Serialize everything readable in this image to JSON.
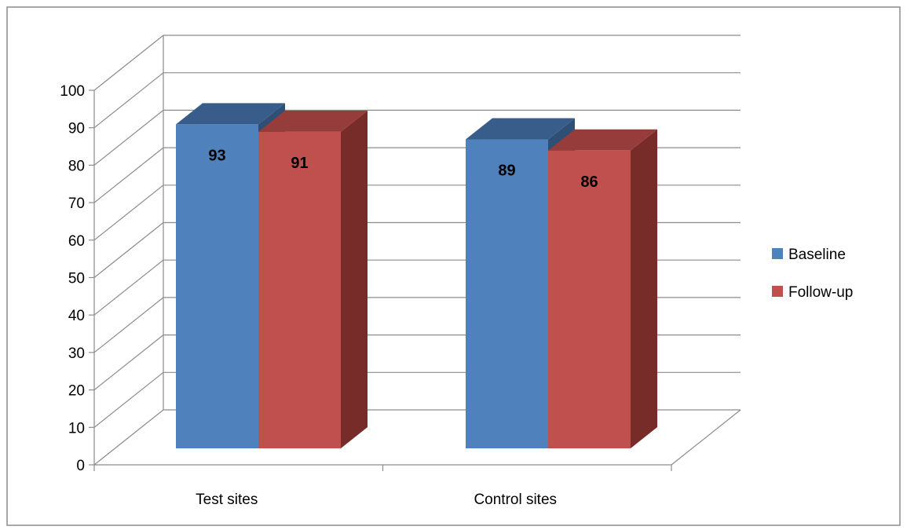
{
  "chart_data": {
    "type": "bar",
    "categories": [
      "Test sites",
      "Control sites"
    ],
    "series": [
      {
        "name": "Baseline",
        "values": [
          93,
          89
        ]
      },
      {
        "name": "Follow-up",
        "values": [
          91,
          86
        ]
      }
    ],
    "ylim": [
      0,
      100
    ],
    "y_ticks": [
      0,
      10,
      20,
      30,
      40,
      50,
      60,
      70,
      80,
      90,
      100
    ],
    "grid": true,
    "legend_position": "right",
    "style": "3d-clustered-column",
    "colors": {
      "Baseline": {
        "front": "#4f81bd",
        "top": "#385d8a",
        "side": "#2f4f77"
      },
      "Follow-up": {
        "front": "#c0504d",
        "top": "#963c3a",
        "side": "#772c2a"
      }
    }
  }
}
